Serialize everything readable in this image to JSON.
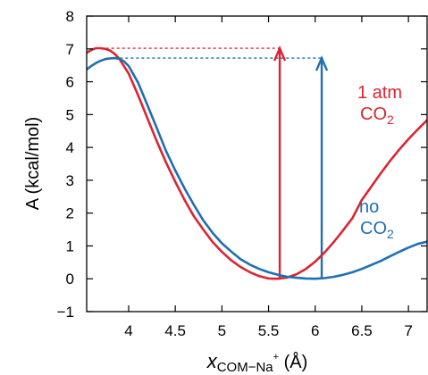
{
  "chart_data": {
    "type": "line",
    "xlabel": {
      "main": "x",
      "sub": "COM−Na",
      "sup": "+",
      "unit": " (Å)"
    },
    "ylabel": "A (kcal/mol)",
    "xlim": [
      3.55,
      7.2
    ],
    "ylim": [
      -1,
      8
    ],
    "xticks": [
      4,
      4.5,
      5,
      5.5,
      6,
      6.5,
      7
    ],
    "xtick_labels": [
      "4",
      "4.5",
      "5",
      "5.5",
      "6",
      "6.5",
      "7"
    ],
    "yticks": [
      -1,
      0,
      1,
      2,
      3,
      4,
      5,
      6,
      7,
      8
    ],
    "ytick_labels": [
      "−1",
      "0",
      "1",
      "2",
      "3",
      "4",
      "5",
      "6",
      "7",
      "8"
    ],
    "grid": false,
    "legend": "inline labels beside curves (right side)",
    "series": [
      {
        "name": "1 atm CO2",
        "label_lines": [
          "1 atm",
          "CO"
        ],
        "label_subscript": "2",
        "color": "#dc2431",
        "x": [
          3.55,
          3.6,
          3.65,
          3.7,
          3.75,
          3.8,
          3.85,
          3.9,
          4.0,
          4.1,
          4.2,
          4.3,
          4.4,
          4.5,
          4.6,
          4.7,
          4.8,
          4.9,
          5.0,
          5.1,
          5.2,
          5.3,
          5.4,
          5.5,
          5.6,
          5.7,
          5.8,
          5.9,
          6.0,
          6.1,
          6.2,
          6.3,
          6.4,
          6.5,
          6.6,
          6.7,
          6.8,
          6.9,
          7.0,
          7.1,
          7.2
        ],
        "y": [
          6.88,
          6.97,
          7.02,
          7.02,
          7.0,
          6.95,
          6.85,
          6.7,
          6.25,
          5.6,
          4.9,
          4.2,
          3.55,
          2.95,
          2.4,
          1.9,
          1.5,
          1.12,
          0.82,
          0.56,
          0.36,
          0.2,
          0.08,
          0.01,
          0.0,
          0.04,
          0.14,
          0.3,
          0.52,
          0.8,
          1.12,
          1.48,
          1.85,
          2.4,
          2.8,
          3.2,
          3.58,
          3.93,
          4.25,
          4.55,
          4.83
        ]
      },
      {
        "name": "no CO2",
        "label_lines": [
          "no",
          "CO"
        ],
        "label_subscript": "2",
        "color": "#1f6fb2",
        "x": [
          3.55,
          3.6,
          3.65,
          3.7,
          3.75,
          3.8,
          3.85,
          3.9,
          3.95,
          4.0,
          4.1,
          4.2,
          4.3,
          4.4,
          4.5,
          4.6,
          4.7,
          4.8,
          4.9,
          5.0,
          5.1,
          5.2,
          5.3,
          5.4,
          5.5,
          5.6,
          5.7,
          5.8,
          5.9,
          6.0,
          6.1,
          6.2,
          6.3,
          6.4,
          6.5,
          6.6,
          6.7,
          6.8,
          6.9,
          7.0,
          7.1,
          7.2
        ],
        "y": [
          6.37,
          6.48,
          6.57,
          6.64,
          6.69,
          6.71,
          6.72,
          6.7,
          6.62,
          6.48,
          5.98,
          5.3,
          4.6,
          3.9,
          3.3,
          2.75,
          2.25,
          1.78,
          1.4,
          1.08,
          0.83,
          0.6,
          0.43,
          0.3,
          0.2,
          0.12,
          0.06,
          0.03,
          0.01,
          0.0,
          0.02,
          0.06,
          0.12,
          0.2,
          0.3,
          0.42,
          0.54,
          0.68,
          0.82,
          0.95,
          1.06,
          1.13
        ]
      }
    ],
    "annotations": [
      {
        "type": "dashed-hline",
        "color": "#dc2431",
        "y": 7.02,
        "x_from": 3.7,
        "x_to": 5.62
      },
      {
        "type": "dashed-hline",
        "color": "#1f6fb2",
        "y": 6.72,
        "x_from": 3.85,
        "x_to": 6.07
      },
      {
        "type": "arrow-up",
        "color": "#dc2431",
        "x": 5.62,
        "y_from": 0.0,
        "y_to": 7.02
      },
      {
        "type": "arrow-up",
        "color": "#1f6fb2",
        "x": 6.07,
        "y_from": 0.0,
        "y_to": 6.72
      }
    ]
  }
}
